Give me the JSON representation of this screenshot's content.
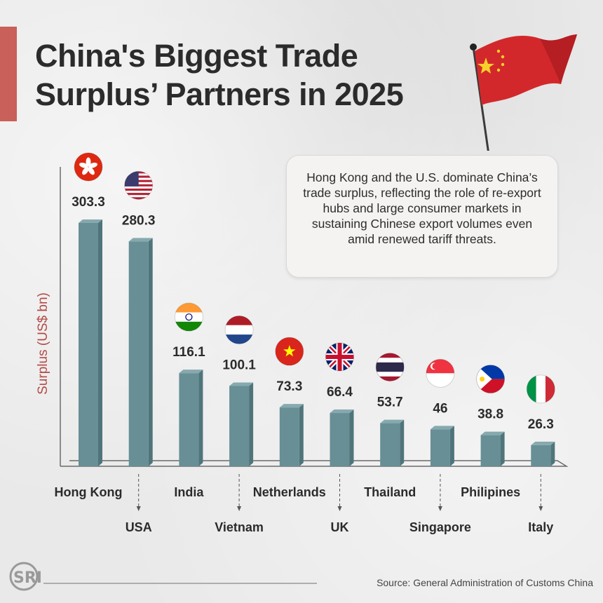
{
  "title": {
    "line1": "China's Biggest Trade",
    "line2": "Surplus’ Partners in 2025"
  },
  "callout": "Hong Kong and the U.S. dominate China’s trade surplus, reflecting the role of re-export hubs and large consumer markets in sustaining Chinese export volumes even amid renewed tariff threats.",
  "source": "Source: General Administration of Customs China",
  "logo_text": "SRI",
  "colors": {
    "bar_front": "#678f95",
    "bar_side": "#4f757b",
    "bar_top": "#86a9ae",
    "accent": "#c9605a"
  },
  "chart_data": {
    "type": "bar",
    "ylabel": "Surplus (US$ bn)",
    "categories": [
      "Hong Kong",
      "USA",
      "India",
      "Vietnam",
      "Netherlands",
      "UK",
      "Thailand",
      "Singapore",
      "Philipines",
      "Italy"
    ],
    "values": [
      303.3,
      280.3,
      116.1,
      100.1,
      73.3,
      66.4,
      53.7,
      46,
      38.8,
      26.3
    ],
    "value_labels": [
      "303.3",
      "280.3",
      "116.1",
      "100.1",
      "73.3",
      "66.4",
      "53.7",
      "46",
      "38.8",
      "26.3"
    ],
    "flags": [
      "hong-kong-flag-icon",
      "usa-flag-icon",
      "india-flag-icon",
      "netherlands-flag-icon",
      "vietnam-flag-icon",
      "uk-flag-icon",
      "thailand-flag-icon",
      "singapore-flag-icon",
      "philippines-flag-icon",
      "italy-flag-icon"
    ],
    "ylim": [
      0,
      303.3
    ],
    "grid": false,
    "legend": "none"
  }
}
